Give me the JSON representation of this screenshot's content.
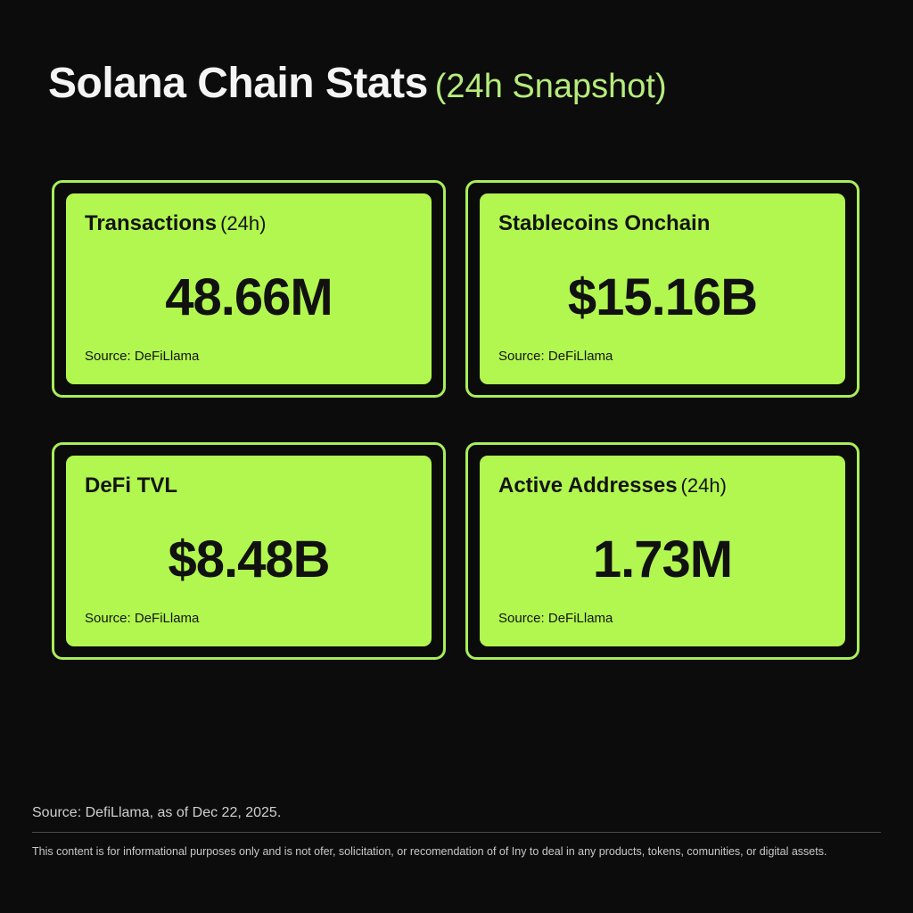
{
  "header": {
    "title": "Solana Chain Stats",
    "subtitle": "(24h Snapshot)"
  },
  "cards": [
    {
      "label": "Transactions",
      "label_suffix": "(24h)",
      "value": "48.66M",
      "source": "Source: DeFiLlama"
    },
    {
      "label": "Stablecoins Onchain",
      "label_suffix": "",
      "value": "$15.16B",
      "source": "Source: DeFiLlama"
    },
    {
      "label": "DeFi TVL",
      "label_suffix": "",
      "value": "$8.48B",
      "source": "Source: DeFiLlama"
    },
    {
      "label": "Active Addresses",
      "label_suffix": "(24h)",
      "value": "1.73M",
      "source": "Source: DeFiLlama"
    }
  ],
  "footer": {
    "source": "Source: DefiLlama, as of Dec 22, 2025.",
    "disclaimer": "This content is for informational purposes only and is not ofer, solicitation, or recomendation of of Iny to deal in any products, tokens, comunities, or digital assets."
  },
  "colors": {
    "background": "#0c0c0c",
    "card_fill": "#b1f74f",
    "card_border": "#a8ee5a",
    "accent_text": "#b6ec7c"
  }
}
